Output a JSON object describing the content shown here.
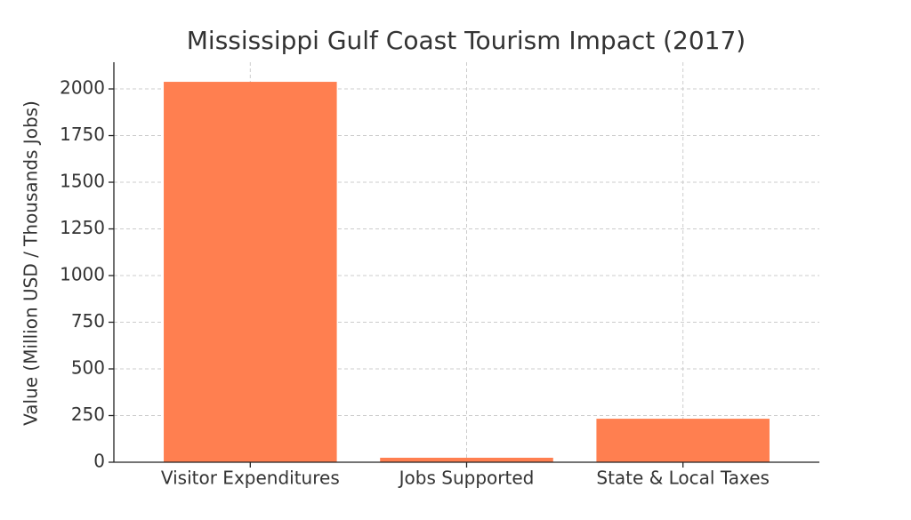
{
  "chart_data": {
    "type": "bar",
    "title": "Mississippi Gulf Coast Tourism Impact (2017)",
    "y_label": "Value (Million USD / Thousands Jobs)",
    "categories": [
      "Visitor Expenditures",
      "Jobs Supported",
      "State & Local Taxes"
    ],
    "values": [
      2038,
      24,
      233
    ],
    "color": "#ff7f50",
    "ylim": [
      0,
      2143
    ],
    "yticks": [
      0,
      250,
      500,
      750,
      1000,
      1250,
      1500,
      1750,
      2000
    ],
    "grid": true
  }
}
